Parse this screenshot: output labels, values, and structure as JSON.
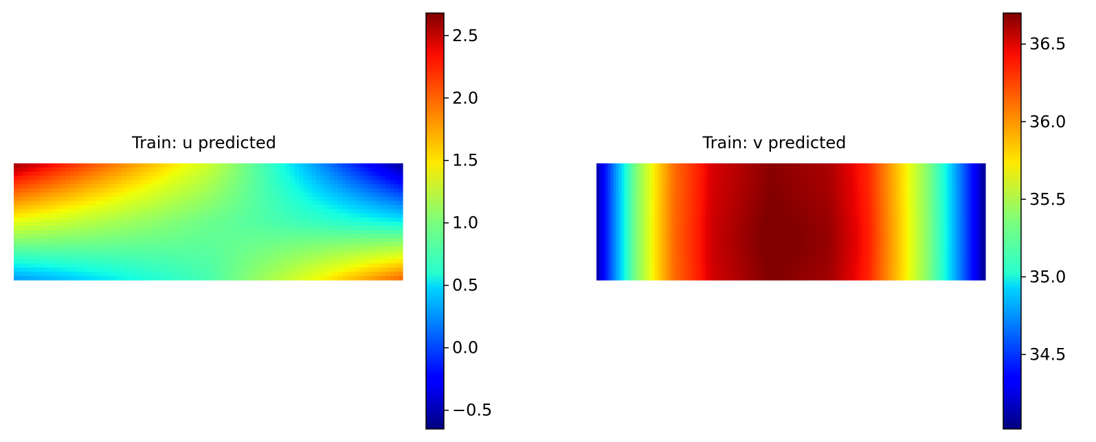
{
  "chart_data": [
    {
      "type": "heatmap",
      "title": "Train: u predicted",
      "colormap": "jet",
      "axes": "off",
      "grid": false,
      "colorbar": {
        "position": "right",
        "vmin": -0.65,
        "vmax": 2.68,
        "ticks": [
          -0.5,
          0.0,
          0.5,
          1.0,
          1.5,
          2.0,
          2.5
        ],
        "tick_labels": [
          "−0.5",
          "0.0",
          "0.5",
          "1.0",
          "1.5",
          "2.0",
          "2.5"
        ]
      },
      "x_nodes": [
        0,
        0.5,
        1
      ],
      "y_nodes": [
        0,
        0.5,
        1
      ],
      "z": [
        [
          2.6,
          1.35,
          -0.6
        ],
        [
          1.45,
          0.95,
          0.55
        ],
        [
          0.25,
          0.8,
          2.05
        ]
      ]
    },
    {
      "type": "heatmap",
      "title": "Train: v predicted",
      "colormap": "jet",
      "axes": "off",
      "grid": false,
      "colorbar": {
        "position": "right",
        "vmin": 34.02,
        "vmax": 36.7,
        "ticks": [
          34.5,
          35.0,
          35.5,
          36.0,
          36.5
        ],
        "tick_labels": [
          "34.5",
          "35.0",
          "35.5",
          "36.0",
          "36.5"
        ]
      },
      "x_profile": [
        [
          0.0,
          34.1
        ],
        [
          0.05,
          34.75
        ],
        [
          0.1,
          35.35
        ],
        [
          0.15,
          35.8
        ],
        [
          0.2,
          36.15
        ],
        [
          0.3,
          36.5
        ],
        [
          0.45,
          36.68
        ],
        [
          0.6,
          36.6
        ],
        [
          0.7,
          36.35
        ],
        [
          0.75,
          36.05
        ],
        [
          0.8,
          35.75
        ],
        [
          0.85,
          35.4
        ],
        [
          0.9,
          35.0
        ],
        [
          0.95,
          34.55
        ],
        [
          1.0,
          34.05
        ]
      ]
    }
  ]
}
